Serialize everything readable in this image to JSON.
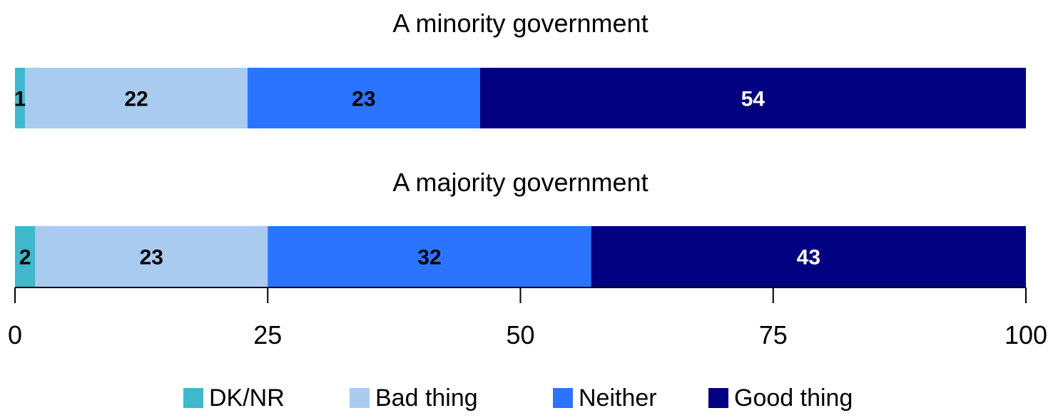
{
  "chart_data": {
    "type": "bar",
    "orientation": "horizontal",
    "stacked": true,
    "categories": [
      "A minority government",
      "A majority government"
    ],
    "series": [
      {
        "name": "DK/NR",
        "color": "#3FB8CC",
        "values": [
          1,
          2
        ]
      },
      {
        "name": "Bad thing",
        "color": "#A9CBF0",
        "values": [
          22,
          23
        ]
      },
      {
        "name": "Neither",
        "color": "#2B74FF",
        "values": [
          23,
          32
        ]
      },
      {
        "name": "Good thing",
        "color": "#000080",
        "values": [
          54,
          43
        ]
      }
    ],
    "xlim": [
      0,
      100
    ],
    "xticks": [
      0,
      25,
      50,
      75,
      100
    ],
    "grid": false,
    "legend_position": "bottom"
  }
}
